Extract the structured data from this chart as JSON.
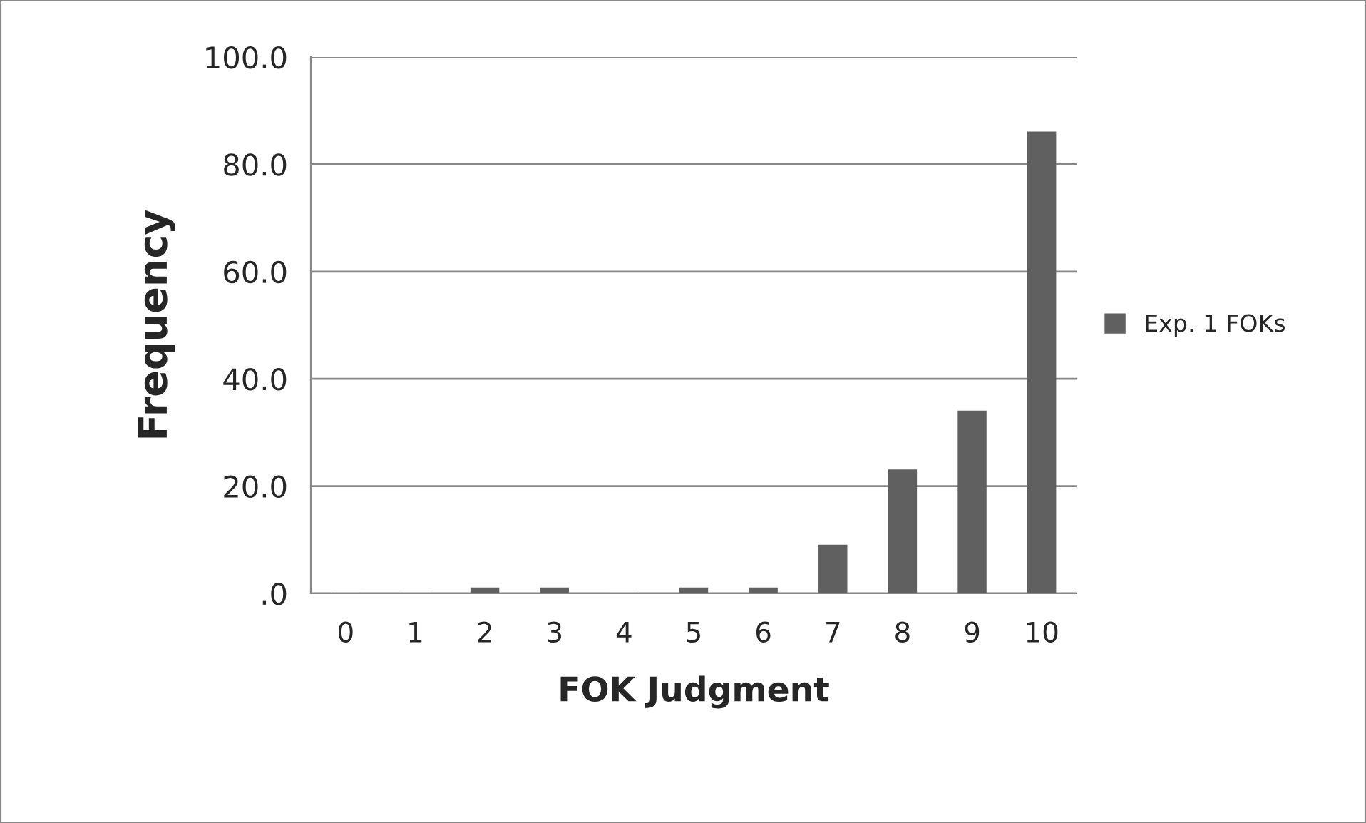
{
  "chart_data": {
    "type": "bar",
    "xlabel": "FOK Judgment",
    "ylabel": "Frequency",
    "categories": [
      "0",
      "1",
      "2",
      "3",
      "4",
      "5",
      "6",
      "7",
      "8",
      "9",
      "10"
    ],
    "series": [
      {
        "name": "Exp. 1 FOKs",
        "color": "#606060",
        "values": [
          0,
          0,
          1,
          1,
          0,
          1,
          1,
          9,
          23,
          34,
          86
        ]
      }
    ],
    "ylim": [
      0,
      100
    ],
    "yticks": [
      {
        "value": 0,
        "label": ".0"
      },
      {
        "value": 20,
        "label": "20.0"
      },
      {
        "value": 40,
        "label": "40.0"
      },
      {
        "value": 60,
        "label": "60.0"
      },
      {
        "value": 80,
        "label": "80.0"
      },
      {
        "value": 100,
        "label": "100.0"
      }
    ],
    "grid": "y",
    "legend": "right"
  }
}
